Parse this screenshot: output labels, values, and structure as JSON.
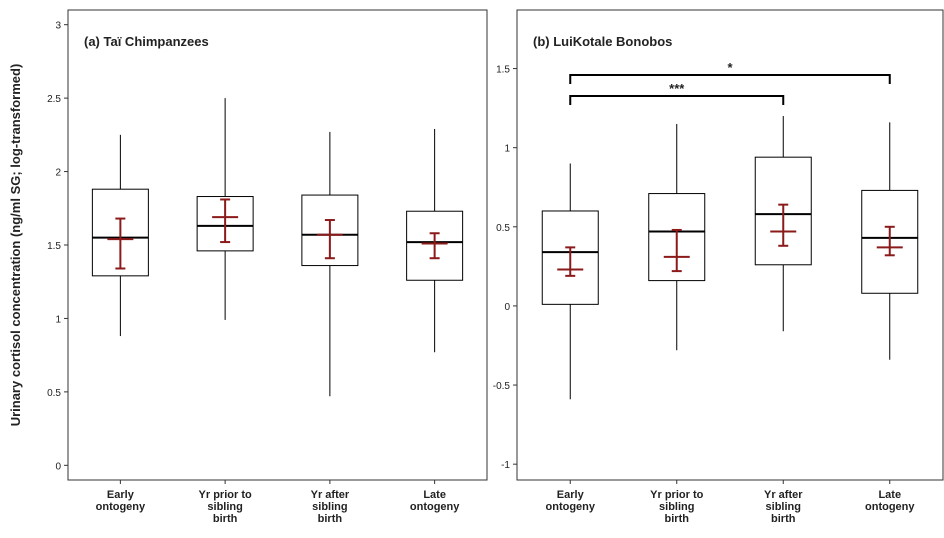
{
  "chart_data": [
    {
      "type": "box",
      "title": "(a) Taï Chimpanzees",
      "ylabel": "Urinary cortisol concentration  (ng/ml SG; log-transformed)",
      "categories": [
        "Early\nontogeny",
        "Yr prior to\nsibling\nbirth",
        "Yr after\nsibling\nbirth",
        "Late\nontogeny"
      ],
      "whisker_low": [
        0.88,
        0.99,
        0.47,
        0.77
      ],
      "q1": [
        1.29,
        1.46,
        1.36,
        1.26
      ],
      "median": [
        1.55,
        1.63,
        1.57,
        1.52
      ],
      "q3": [
        1.88,
        1.83,
        1.84,
        1.73
      ],
      "whisker_high": [
        2.25,
        2.5,
        2.27,
        2.29
      ],
      "mean": [
        1.54,
        1.69,
        1.57,
        1.51
      ],
      "mean_low": [
        1.34,
        1.52,
        1.41,
        1.41
      ],
      "mean_high": [
        1.68,
        1.81,
        1.67,
        1.58
      ],
      "color": "#000000",
      "mean_color": "#8b1a1a",
      "ylim": [
        -0.1,
        3.1
      ],
      "yticks": [
        0,
        0.5,
        1,
        1.5,
        2,
        2.5,
        3
      ]
    },
    {
      "type": "box",
      "title": "(b) LuiKotale  Bonobos",
      "categories": [
        "Early\nontogeny",
        "Yr prior to\nsibling\nbirth",
        "Yr after\nsibling\nbirth",
        "Late\nontogeny"
      ],
      "whisker_low": [
        -0.59,
        -0.28,
        -0.16,
        -0.34
      ],
      "q1": [
        0.01,
        0.16,
        0.26,
        0.08
      ],
      "median": [
        0.34,
        0.47,
        0.58,
        0.43
      ],
      "q3": [
        0.6,
        0.71,
        0.94,
        0.73
      ],
      "whisker_high": [
        0.9,
        1.15,
        1.2,
        1.16
      ],
      "mean": [
        0.23,
        0.31,
        0.47,
        0.37
      ],
      "mean_low": [
        0.19,
        0.22,
        0.38,
        0.32
      ],
      "mean_high": [
        0.37,
        0.48,
        0.64,
        0.5
      ],
      "color": "#000000",
      "mean_color": "#8b1a1a",
      "ylim": [
        -1.1,
        1.87
      ],
      "yticks": [
        -1,
        -0.5,
        0,
        0.5,
        1,
        1.5
      ],
      "brackets": [
        {
          "label": "***",
          "from": 0,
          "to": 2
        },
        {
          "label": "*",
          "from": 0,
          "to": 3
        }
      ]
    }
  ]
}
